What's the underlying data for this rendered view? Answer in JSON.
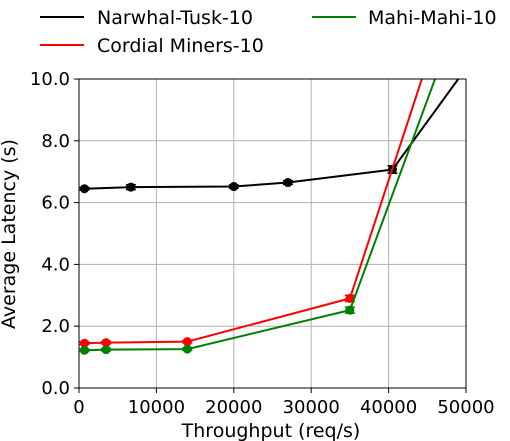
{
  "chart_data": {
    "type": "line",
    "xlabel": "Throughput (req/s)",
    "ylabel": "Average Latency (s)",
    "xlim": [
      0,
      50000
    ],
    "ylim": [
      0,
      10
    ],
    "xticks": [
      0,
      10000,
      20000,
      30000,
      40000,
      50000
    ],
    "xtick_labels": [
      "0",
      "10000",
      "20000",
      "30000",
      "40000",
      "50000"
    ],
    "yticks": [
      0,
      2,
      4,
      6,
      8,
      10
    ],
    "ytick_labels": [
      "0.0",
      "2.0",
      "4.0",
      "6.0",
      "8.0",
      "10.0"
    ],
    "grid": true,
    "legend_position": "top, above plot, two columns",
    "series": [
      {
        "name": "Narwhal-Tusk-10",
        "color": "#000000",
        "x": [
          700,
          6700,
          20000,
          27000,
          40500,
          49000
        ],
        "y": [
          6.45,
          6.5,
          6.52,
          6.65,
          7.07,
          10.0
        ],
        "err": [
          0.04,
          0.08,
          0.05,
          0.06,
          0.12,
          0
        ],
        "markers": [
          true,
          true,
          true,
          true,
          true,
          false
        ]
      },
      {
        "name": "Cordial Miners-10",
        "color": "#ff0000",
        "x": [
          700,
          3500,
          14000,
          35000,
          44300
        ],
        "y": [
          1.45,
          1.47,
          1.5,
          2.9,
          10.0
        ],
        "err": [
          0.04,
          0.04,
          0.04,
          0.1,
          0
        ],
        "markers": [
          true,
          true,
          true,
          true,
          false
        ]
      },
      {
        "name": "Mahi-Mahi-10",
        "color": "#008000",
        "x": [
          700,
          3500,
          14000,
          35000,
          46000
        ],
        "y": [
          1.22,
          1.24,
          1.26,
          2.52,
          10.0
        ],
        "err": [
          0.04,
          0.04,
          0.04,
          0.1,
          0
        ],
        "markers": [
          true,
          true,
          true,
          true,
          false
        ]
      }
    ]
  }
}
